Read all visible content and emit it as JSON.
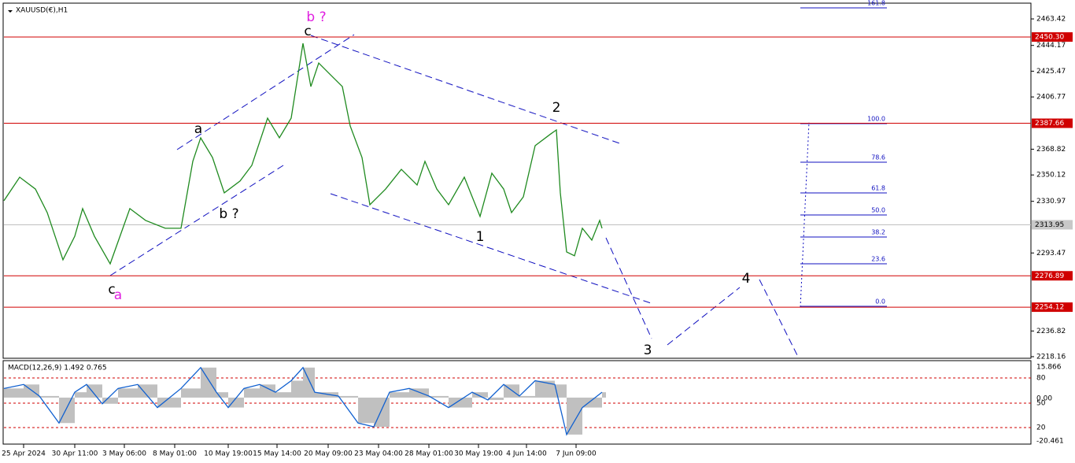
{
  "chart_data": {
    "type": "line",
    "title": "XAUUSD(€),H1",
    "x": [
      0,
      20,
      40,
      55,
      75,
      90,
      100,
      115,
      135,
      160,
      180,
      205,
      225,
      240,
      250,
      265,
      280,
      300,
      315,
      335,
      350,
      365,
      380,
      390,
      400,
      415,
      430,
      440,
      455,
      465,
      485,
      505,
      525,
      535,
      550,
      565,
      585,
      605,
      620,
      635,
      645,
      660,
      675,
      695,
      702,
      707,
      715,
      725,
      735,
      747,
      757,
      760
    ],
    "series": [
      {
        "name": "XAUUSD",
        "color": "#1f8a1f",
        "values": [
          2331.4,
          2348.5,
          2339.9,
          2322.8,
          2288.5,
          2305.6,
          2325.7,
          2305.6,
          2285.6,
          2325.7,
          2317.1,
          2311.4,
          2311.4,
          2360.0,
          2377.1,
          2362.8,
          2337.1,
          2345.7,
          2357.1,
          2391.4,
          2377.1,
          2391.4,
          2445.7,
          2414.3,
          2431.4,
          2422.8,
          2414.3,
          2385.7,
          2362.8,
          2328.5,
          2339.9,
          2354.2,
          2342.8,
          2360.0,
          2339.9,
          2328.5,
          2348.5,
          2320.0,
          2351.4,
          2339.9,
          2322.8,
          2334.2,
          2371.4,
          2380.0,
          2382.8,
          2337.1,
          2294.2,
          2291.4,
          2311.4,
          2302.8,
          2317.1,
          2311.4
        ]
      }
    ],
    "xlim": [
      0,
      1305
    ],
    "ylim": [
      2217.0,
      2474.3
    ],
    "yticks": [
      2463.42,
      2444.17,
      2425.47,
      2406.77,
      2368.82,
      2350.12,
      2330.97,
      2293.47,
      2236.82,
      2218.16
    ],
    "levels": [
      {
        "value": 2450.3,
        "label": "2450.30"
      },
      {
        "value": 2387.66,
        "label": "2387.66"
      },
      {
        "value": 2276.89,
        "label": "2276.89"
      },
      {
        "value": 2254.12,
        "label": "2254.12"
      }
    ],
    "current": 2313.95,
    "xticks": [
      {
        "value": 25,
        "label": "25 Apr 2024"
      },
      {
        "value": 90,
        "label": "30 Apr 11:00"
      },
      {
        "value": 153,
        "label": "3 May 06:00"
      },
      {
        "value": 217,
        "label": "8 May 01:00"
      },
      {
        "value": 285,
        "label": "10 May 19:00"
      },
      {
        "value": 347,
        "label": "15 May 14:00"
      },
      {
        "value": 412,
        "label": "20 May 09:00"
      },
      {
        "value": 476,
        "label": "23 May 04:00"
      },
      {
        "value": 540,
        "label": "28 May 01:00"
      },
      {
        "value": 603,
        "label": "30 May 19:00"
      },
      {
        "value": 664,
        "label": "4 Jun 14:00"
      },
      {
        "value": 727,
        "label": "7 Jun 09:00"
      }
    ],
    "wave_labels": [
      {
        "text": "b ?",
        "color": "#e020e0"
      },
      {
        "text": "c",
        "color": "#000000"
      },
      {
        "text": "a",
        "color": "#000000"
      },
      {
        "text": "b ?",
        "color": "#000000"
      },
      {
        "text": "c",
        "color": "#000000"
      },
      {
        "text": "a",
        "color": "#e020e0"
      },
      {
        "text": "2",
        "color": "#000000"
      },
      {
        "text": "1",
        "color": "#000000"
      },
      {
        "text": "3",
        "color": "#000000"
      },
      {
        "text": "4",
        "color": "#000000"
      }
    ],
    "fib_labels": [
      "161.8",
      "100.0",
      "78.6",
      "61.8",
      "50.0",
      "38.2",
      "23.6",
      "0.0"
    ],
    "macd": {
      "title": "MACD(12,26,9) 1.492 0.765",
      "x": [
        0,
        25,
        45,
        70,
        90,
        105,
        125,
        145,
        170,
        195,
        225,
        250,
        270,
        285,
        305,
        325,
        345,
        365,
        380,
        395,
        425,
        450,
        470,
        490,
        515,
        540,
        565,
        595,
        615,
        635,
        655,
        675,
        700,
        715,
        735,
        760
      ],
      "values": [
        4.6,
        6.6,
        0.8,
        -12.8,
        2.7,
        6.6,
        -3.1,
        4.6,
        6.6,
        -5.0,
        4.6,
        15.1,
        2.7,
        -5.0,
        4.6,
        6.6,
        2.7,
        8.5,
        15.1,
        2.7,
        0.8,
        -12.8,
        -14.7,
        2.7,
        4.6,
        0.8,
        -5.0,
        2.7,
        -1.2,
        6.6,
        0.8,
        8.5,
        6.6,
        -18.6,
        -5.0,
        2.7
      ],
      "ylim": [
        -23.0,
        18.2
      ],
      "axis_labels": [
        "15.866",
        "80",
        "0.00",
        "50",
        "20",
        "-20.461"
      ]
    }
  }
}
